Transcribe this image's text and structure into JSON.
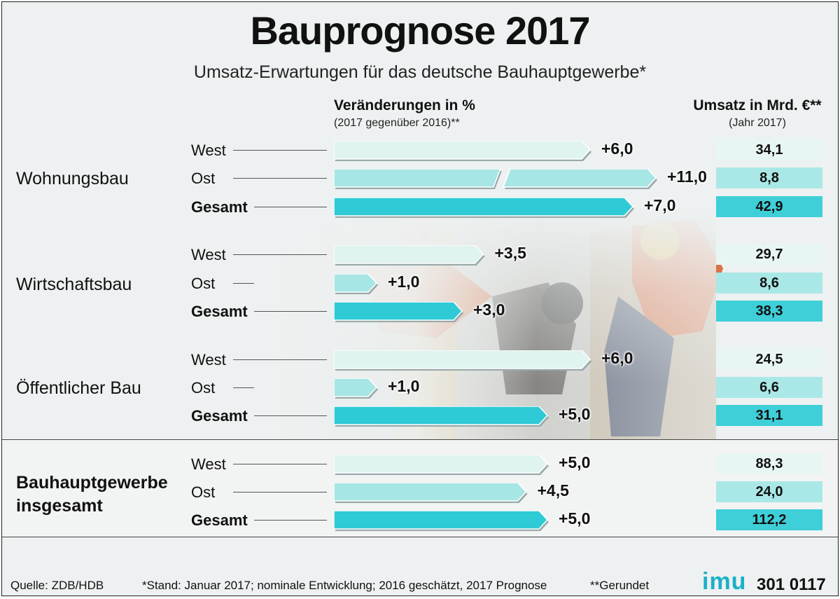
{
  "title": "Bauprognose 2017",
  "subtitle": "Umsatz-Erwartungen für das deutsche Bauhauptgewerbe*",
  "headers": {
    "change": "Veränderungen in %",
    "change_sub": "(2017 gegenüber 2016)**",
    "revenue": "Umsatz in Mrd. €**",
    "revenue_sub": "(Jahr 2017)"
  },
  "groups": [
    {
      "label": "Wohnungsbau",
      "rows": [
        {
          "label": "West",
          "change": 6.0,
          "change_label": "+6,0",
          "revenue": "34,1",
          "kind": "west"
        },
        {
          "label": "Ost",
          "change": 11.0,
          "change_label": "+11,0",
          "revenue": "8,8",
          "kind": "ost",
          "broken": true
        },
        {
          "label": "Gesamt",
          "change": 7.0,
          "change_label": "+7,0",
          "revenue": "42,9",
          "kind": "gesamt"
        }
      ]
    },
    {
      "label": "Wirtschaftsbau",
      "rows": [
        {
          "label": "West",
          "change": 3.5,
          "change_label": "+3,5",
          "revenue": "29,7",
          "kind": "west"
        },
        {
          "label": "Ost",
          "change": 1.0,
          "change_label": "+1,0",
          "revenue": "8,6",
          "kind": "ost"
        },
        {
          "label": "Gesamt",
          "change": 3.0,
          "change_label": "+3,0",
          "revenue": "38,3",
          "kind": "gesamt"
        }
      ]
    },
    {
      "label": "Öffentlicher Bau",
      "rows": [
        {
          "label": "West",
          "change": 6.0,
          "change_label": "+6,0",
          "revenue": "24,5",
          "kind": "west"
        },
        {
          "label": "Ost",
          "change": 1.0,
          "change_label": "+1,0",
          "revenue": "6,6",
          "kind": "ost"
        },
        {
          "label": "Gesamt",
          "change": 5.0,
          "change_label": "+5,0",
          "revenue": "31,1",
          "kind": "gesamt"
        }
      ]
    },
    {
      "label_line1": "Bauhauptgewerbe",
      "label_line2": "insgesamt",
      "rows": [
        {
          "label": "West",
          "change": 5.0,
          "change_label": "+5,0",
          "revenue": "88,3",
          "kind": "west"
        },
        {
          "label": "Ost",
          "change": 4.5,
          "change_label": "+4,5",
          "revenue": "24,0",
          "kind": "ost"
        },
        {
          "label": "Gesamt",
          "change": 5.0,
          "change_label": "+5,0",
          "revenue": "112,2",
          "kind": "gesamt"
        }
      ]
    }
  ],
  "colors": {
    "west": "#dff4ef",
    "ost": "#a6e6e4",
    "gesamt": "#2ecad6",
    "revenue_west": "#e8f6f3",
    "revenue_ost": "#a9e8e6",
    "revenue_gesamt": "#3fcfd8"
  },
  "footer": {
    "source": "Quelle: ZDB/HDB",
    "note": "*Stand: Januar 2017; nominale Entwicklung; 2016 geschätzt, 2017 Prognose",
    "note2": "**Gerundet",
    "logo": "imu",
    "code": "301 0117"
  },
  "chart_data": {
    "type": "bar",
    "orientation": "horizontal",
    "title": "Bauprognose 2017",
    "subtitle": "Umsatz-Erwartungen für das deutsche Bauhauptgewerbe*",
    "categories": [
      "Wohnungsbau West",
      "Wohnungsbau Ost",
      "Wohnungsbau Gesamt",
      "Wirtschaftsbau West",
      "Wirtschaftsbau Ost",
      "Wirtschaftsbau Gesamt",
      "Öffentlicher Bau West",
      "Öffentlicher Bau Ost",
      "Öffentlicher Bau Gesamt",
      "Bauhauptgewerbe insgesamt West",
      "Bauhauptgewerbe insgesamt Ost",
      "Bauhauptgewerbe insgesamt Gesamt"
    ],
    "series": [
      {
        "name": "Veränderungen in %",
        "values": [
          6.0,
          11.0,
          7.0,
          3.5,
          1.0,
          3.0,
          6.0,
          1.0,
          5.0,
          5.0,
          4.5,
          5.0
        ]
      },
      {
        "name": "Umsatz in Mrd. €**",
        "values": [
          34.1,
          8.8,
          42.9,
          29.7,
          8.6,
          38.3,
          24.5,
          6.6,
          31.1,
          88.3,
          24.0,
          112.2
        ]
      }
    ],
    "grid": false,
    "legend": "none"
  }
}
